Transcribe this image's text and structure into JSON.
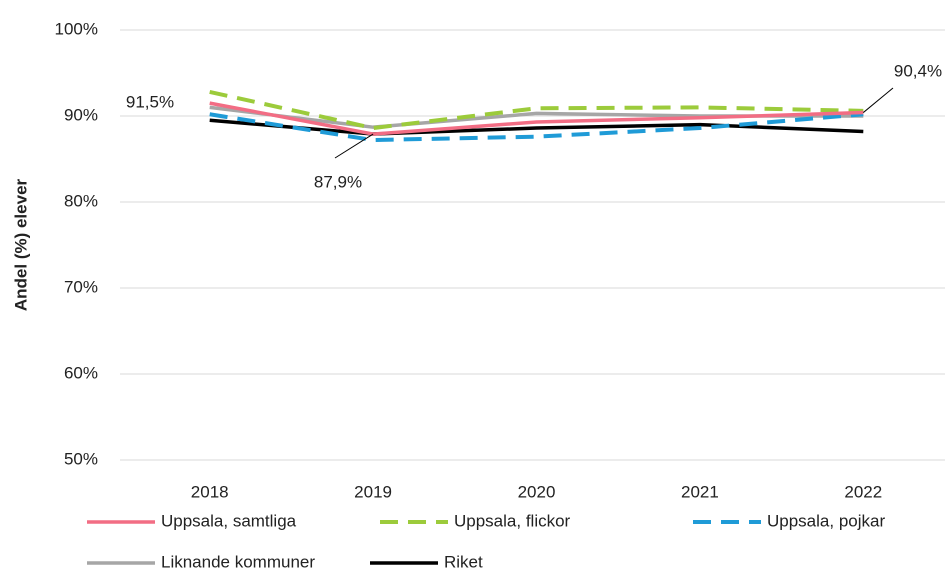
{
  "chart_data": {
    "type": "line",
    "y_label": "Andel (%) elever",
    "categories": [
      "2018",
      "2019",
      "2020",
      "2021",
      "2022"
    ],
    "series": [
      {
        "name": "Uppsala, samtliga",
        "color": "#f26d84",
        "dash": false,
        "values": [
          91.5,
          87.9,
          89.3,
          89.8,
          90.4
        ],
        "value_labels": [
          "91,5%",
          "87,9%",
          null,
          null,
          "90,4%"
        ]
      },
      {
        "name": "Uppsala, flickor",
        "color": "#9ccb3b",
        "dash": true,
        "values": [
          92.8,
          88.6,
          90.9,
          91.0,
          90.6
        ]
      },
      {
        "name": "Uppsala, pojkar",
        "color": "#1f9bd7",
        "dash": true,
        "values": [
          90.2,
          87.2,
          87.6,
          88.6,
          90.2
        ]
      },
      {
        "name": "Liknande kommuner",
        "color": "#a6a6a6",
        "dash": false,
        "values": [
          91.0,
          88.7,
          90.3,
          90.0,
          90.0
        ]
      },
      {
        "name": "Riket",
        "color": "#000000",
        "dash": false,
        "values": [
          89.5,
          87.9,
          88.6,
          89.0,
          88.2
        ]
      }
    ],
    "ylim": [
      50,
      100
    ],
    "yticks": [
      {
        "value": 50,
        "label": "50%"
      },
      {
        "value": 60,
        "label": "60%"
      },
      {
        "value": 70,
        "label": "70%"
      },
      {
        "value": 80,
        "label": "80%"
      },
      {
        "value": 90,
        "label": "90%"
      },
      {
        "value": 100,
        "label": "100%"
      }
    ],
    "grid": true,
    "legend": "bottom"
  }
}
